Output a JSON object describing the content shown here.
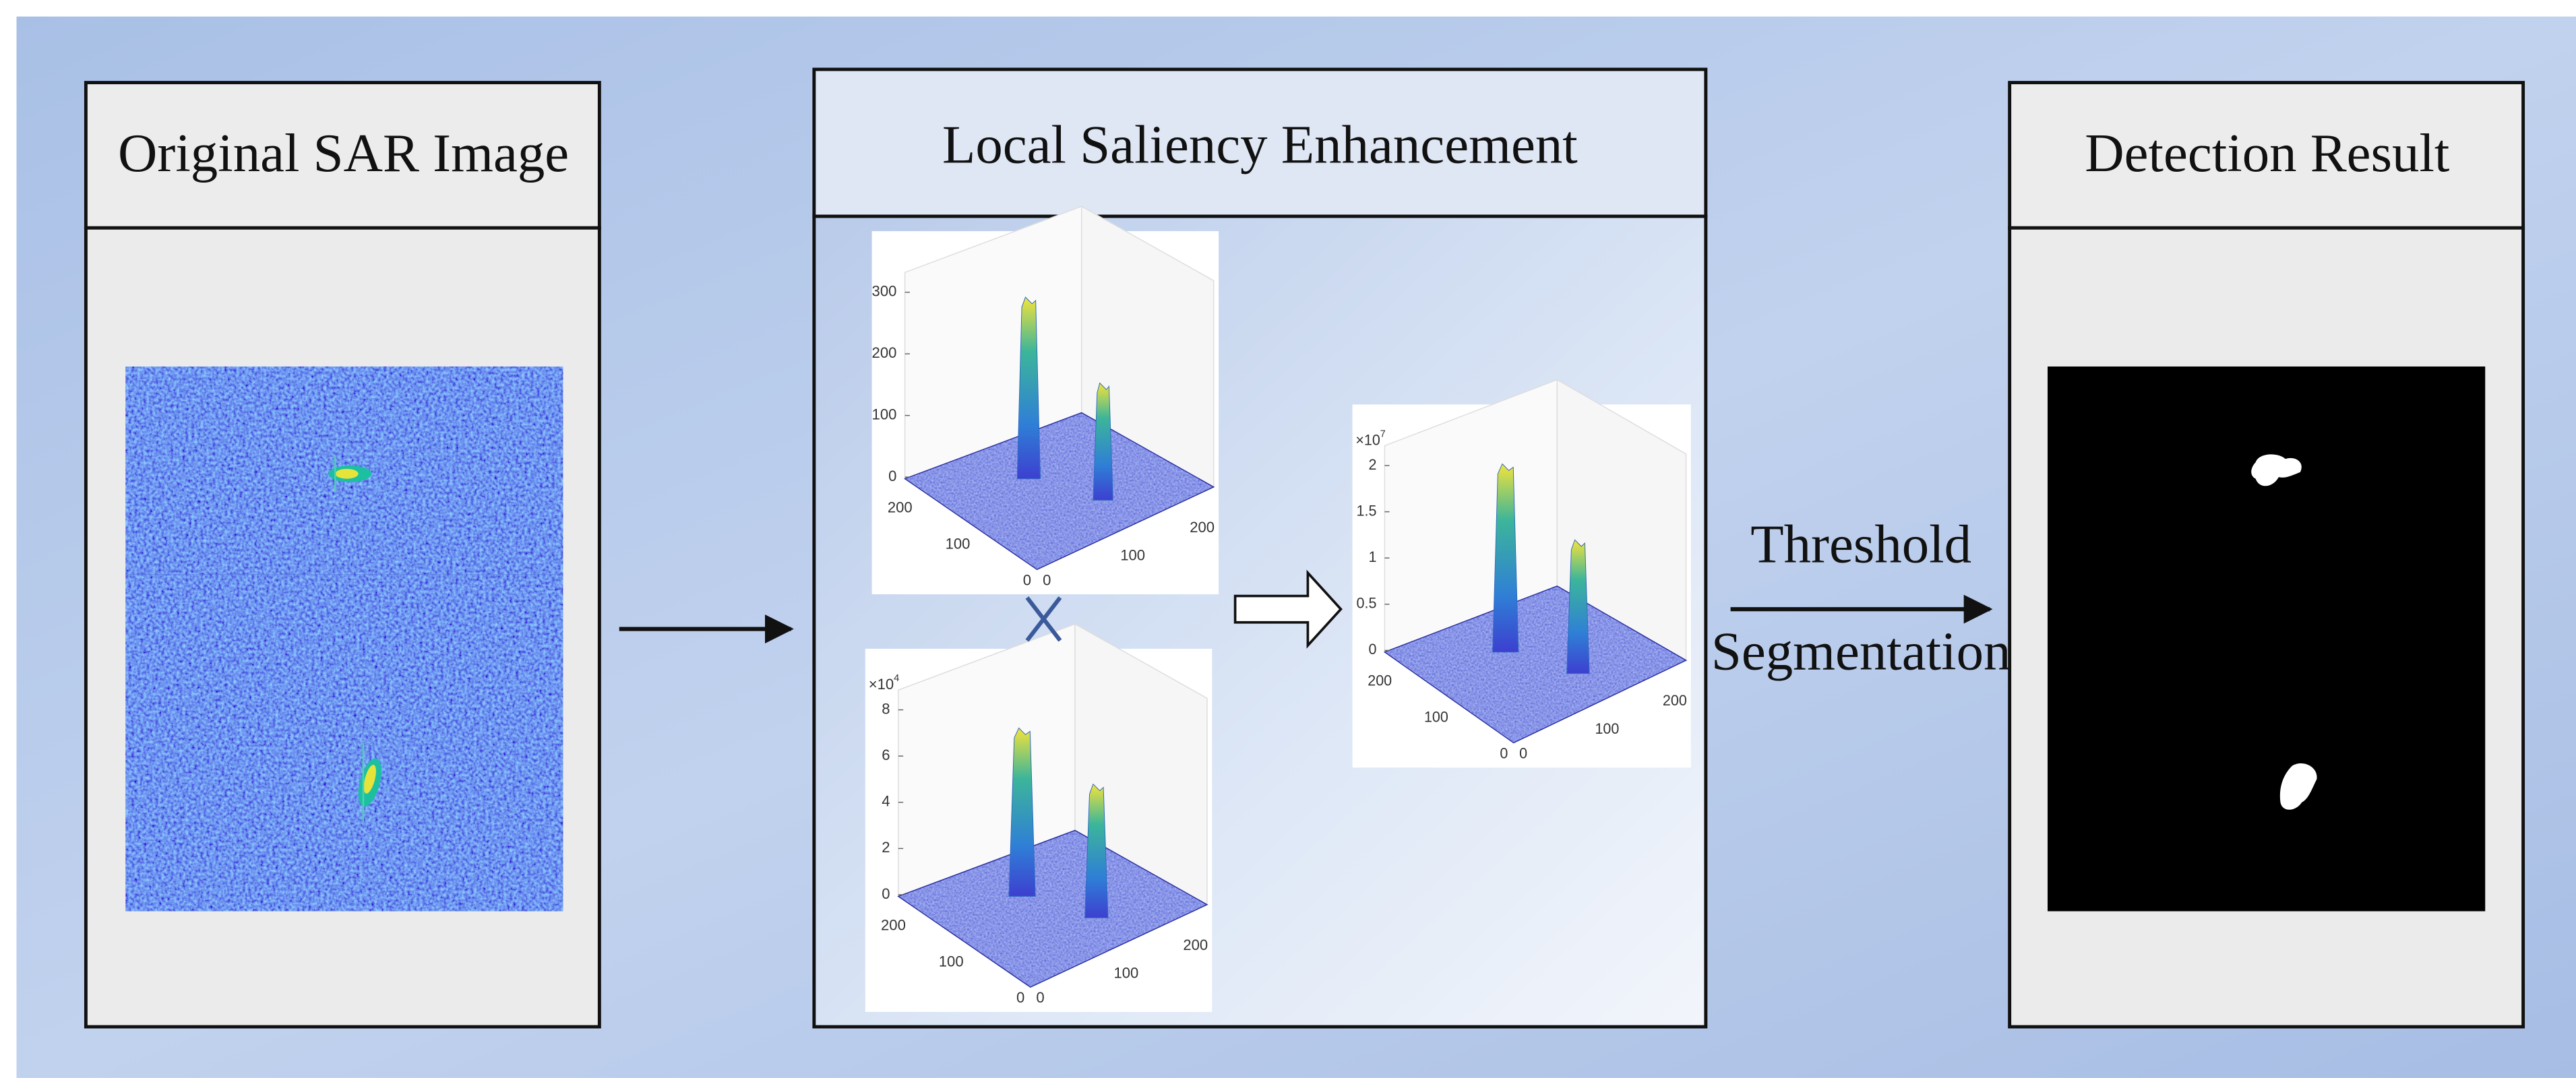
{
  "panels": [
    {
      "title": "Original SAR Image"
    },
    {
      "title": "Local Saliency Enhancement"
    },
    {
      "title": "Detection Result"
    }
  ],
  "plots": [
    {
      "z_ticks": [
        300,
        200,
        100,
        0
      ],
      "y_ticks": [
        200,
        100,
        0
      ],
      "x_ticks": [
        0,
        100,
        200
      ]
    },
    {
      "multiplier": {
        "base": "×10",
        "exponent": "4"
      },
      "z_ticks": [
        8,
        6,
        4,
        2,
        0
      ],
      "y_ticks": [
        200,
        100,
        0
      ],
      "x_ticks": [
        0,
        100,
        200
      ]
    },
    {
      "multiplier": {
        "base": "×10",
        "exponent": "7"
      },
      "z_ticks": [
        2,
        1.5,
        1,
        0.5,
        0
      ],
      "y_ticks": [
        200,
        100,
        0
      ],
      "x_ticks": [
        0,
        100,
        200
      ]
    }
  ],
  "threshold_label": {
    "line1": "Threshold",
    "line2": "Segmentation"
  }
}
